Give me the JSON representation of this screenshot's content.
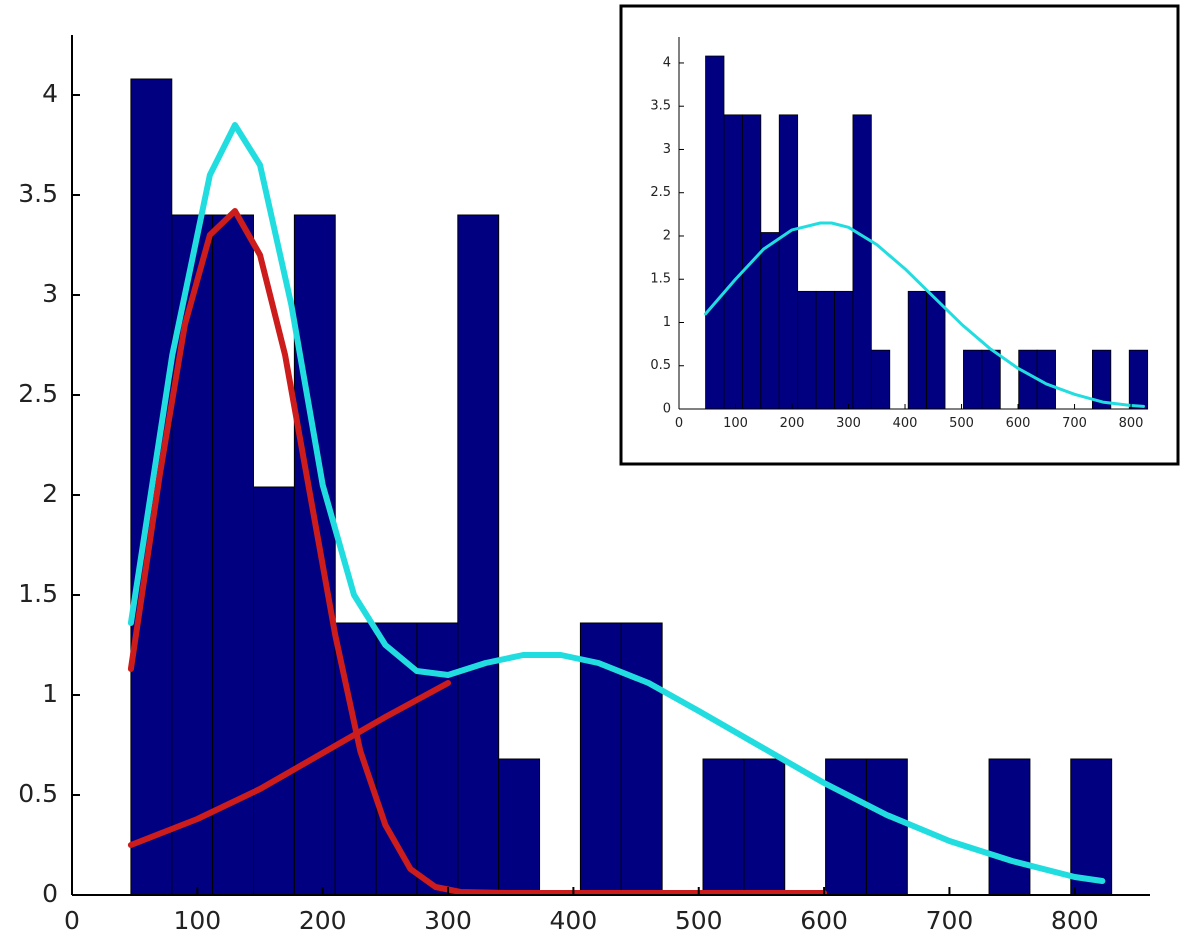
{
  "chart_data": [
    {
      "id": "main",
      "type": "bar",
      "title": "",
      "xlabel": "",
      "ylabel": "",
      "xlim": [
        0,
        860
      ],
      "ylim": [
        0,
        4.3
      ],
      "xticks": [
        0,
        100,
        200,
        300,
        400,
        500,
        600,
        700,
        800
      ],
      "yticks": [
        0,
        0.5,
        1,
        1.5,
        2,
        2.5,
        3,
        3.5,
        4
      ],
      "ytick_labels": [
        "0",
        "0.5",
        "1",
        "1.5",
        "2",
        "2.5",
        "3",
        "3.5",
        "4"
      ],
      "grid": false,
      "bar_color": "#000080",
      "bins": {
        "start": 47,
        "width": 32.6,
        "values": [
          4.08,
          3.4,
          3.4,
          2.04,
          3.4,
          1.36,
          1.36,
          1.36,
          3.4,
          0.68,
          0,
          1.36,
          1.36,
          0,
          0.68,
          0.68,
          0,
          0.68,
          0.68,
          0,
          0,
          0.68,
          0,
          0.68
        ]
      },
      "curves": [
        {
          "color": "#22dde0",
          "x": [
            47,
            80,
            110,
            130,
            150,
            175,
            200,
            225,
            250,
            275,
            300,
            330,
            360,
            390,
            420,
            460,
            500,
            550,
            600,
            650,
            700,
            750,
            800,
            822
          ],
          "y": [
            1.36,
            2.7,
            3.6,
            3.85,
            3.65,
            2.95,
            2.05,
            1.5,
            1.25,
            1.12,
            1.1,
            1.16,
            1.2,
            1.2,
            1.16,
            1.06,
            0.92,
            0.74,
            0.56,
            0.4,
            0.27,
            0.17,
            0.09,
            0.07
          ]
        },
        {
          "color": "#cc1c1c",
          "x": [
            47,
            70,
            90,
            110,
            130,
            150,
            170,
            190,
            210,
            230,
            250,
            270,
            290,
            310,
            350,
            400,
            500,
            600
          ],
          "y": [
            1.13,
            2.1,
            2.85,
            3.3,
            3.42,
            3.2,
            2.7,
            2.0,
            1.3,
            0.72,
            0.35,
            0.13,
            0.04,
            0.015,
            0.01,
            0.01,
            0.01,
            0.01
          ]
        },
        {
          "color": "#cc1c1c",
          "x": [
            47,
            100,
            150,
            200,
            250,
            300
          ],
          "y": [
            0.25,
            0.38,
            0.53,
            0.71,
            0.89,
            1.06
          ]
        }
      ]
    },
    {
      "id": "inset",
      "type": "bar",
      "title": "",
      "xlabel": "",
      "ylabel": "",
      "xlim": [
        0,
        830
      ],
      "ylim": [
        0,
        4.3
      ],
      "xticks": [
        0,
        100,
        200,
        300,
        400,
        500,
        600,
        700,
        800
      ],
      "yticks": [
        0,
        0.5,
        1,
        1.5,
        2,
        2.5,
        3,
        3.5,
        4
      ],
      "ytick_labels": [
        "0",
        "0.5",
        "1",
        "1.5",
        "2",
        "2.5",
        "3",
        "3.5",
        "4"
      ],
      "grid": false,
      "bar_color": "#000080",
      "bins": {
        "start": 47,
        "width": 32.6,
        "values": [
          4.08,
          3.4,
          3.4,
          2.04,
          3.4,
          1.36,
          1.36,
          1.36,
          3.4,
          0.68,
          0,
          1.36,
          1.36,
          0,
          0.68,
          0.68,
          0,
          0.68,
          0.68,
          0,
          0,
          0.68,
          0,
          0.68
        ]
      },
      "curves": [
        {
          "color": "#22dde0",
          "x": [
            47,
            100,
            150,
            200,
            250,
            270,
            300,
            350,
            400,
            450,
            500,
            550,
            600,
            650,
            700,
            750,
            800,
            822
          ],
          "y": [
            1.1,
            1.5,
            1.85,
            2.07,
            2.15,
            2.15,
            2.1,
            1.9,
            1.62,
            1.3,
            0.98,
            0.7,
            0.47,
            0.29,
            0.17,
            0.08,
            0.04,
            0.03
          ]
        }
      ]
    }
  ]
}
